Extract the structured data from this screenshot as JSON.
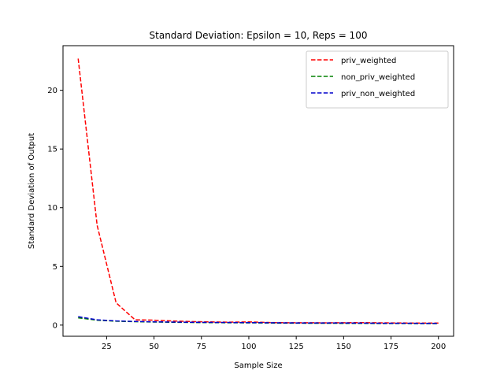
{
  "chart_data": {
    "type": "line",
    "title": "Standard Deviation: Epsilon = 10, Reps = 100",
    "xlabel": "Sample Size",
    "ylabel": "Standard Deviation of Output",
    "xlim": [
      2,
      208
    ],
    "ylim": [
      -0.95,
      23.8
    ],
    "xticks": [
      25,
      50,
      75,
      100,
      125,
      150,
      175,
      200
    ],
    "yticks": [
      0,
      5,
      10,
      15,
      20
    ],
    "grid": false,
    "legend_position": "top-right",
    "x": [
      10,
      20,
      30,
      40,
      50,
      60,
      70,
      80,
      90,
      100,
      110,
      120,
      130,
      140,
      150,
      160,
      170,
      180,
      190,
      200
    ],
    "series": [
      {
        "name": "priv_weighted",
        "color": "#ff0000",
        "dash": "dashed",
        "values": [
          22.7,
          8.5,
          1.9,
          0.45,
          0.42,
          0.35,
          0.3,
          0.27,
          0.25,
          0.27,
          0.22,
          0.2,
          0.2,
          0.19,
          0.2,
          0.21,
          0.19,
          0.18,
          0.17,
          0.17
        ]
      },
      {
        "name": "non_priv_weighted",
        "color": "#008000",
        "dash": "dashed",
        "values": [
          0.62,
          0.42,
          0.33,
          0.29,
          0.26,
          0.24,
          0.22,
          0.21,
          0.2,
          0.19,
          0.18,
          0.17,
          0.16,
          0.16,
          0.15,
          0.15,
          0.14,
          0.14,
          0.13,
          0.13
        ]
      },
      {
        "name": "priv_non_weighted",
        "color": "#0000cc",
        "dash": "dashed",
        "values": [
          0.72,
          0.45,
          0.36,
          0.31,
          0.28,
          0.26,
          0.24,
          0.23,
          0.22,
          0.21,
          0.2,
          0.19,
          0.18,
          0.18,
          0.18,
          0.17,
          0.16,
          0.16,
          0.15,
          0.15
        ]
      }
    ]
  }
}
